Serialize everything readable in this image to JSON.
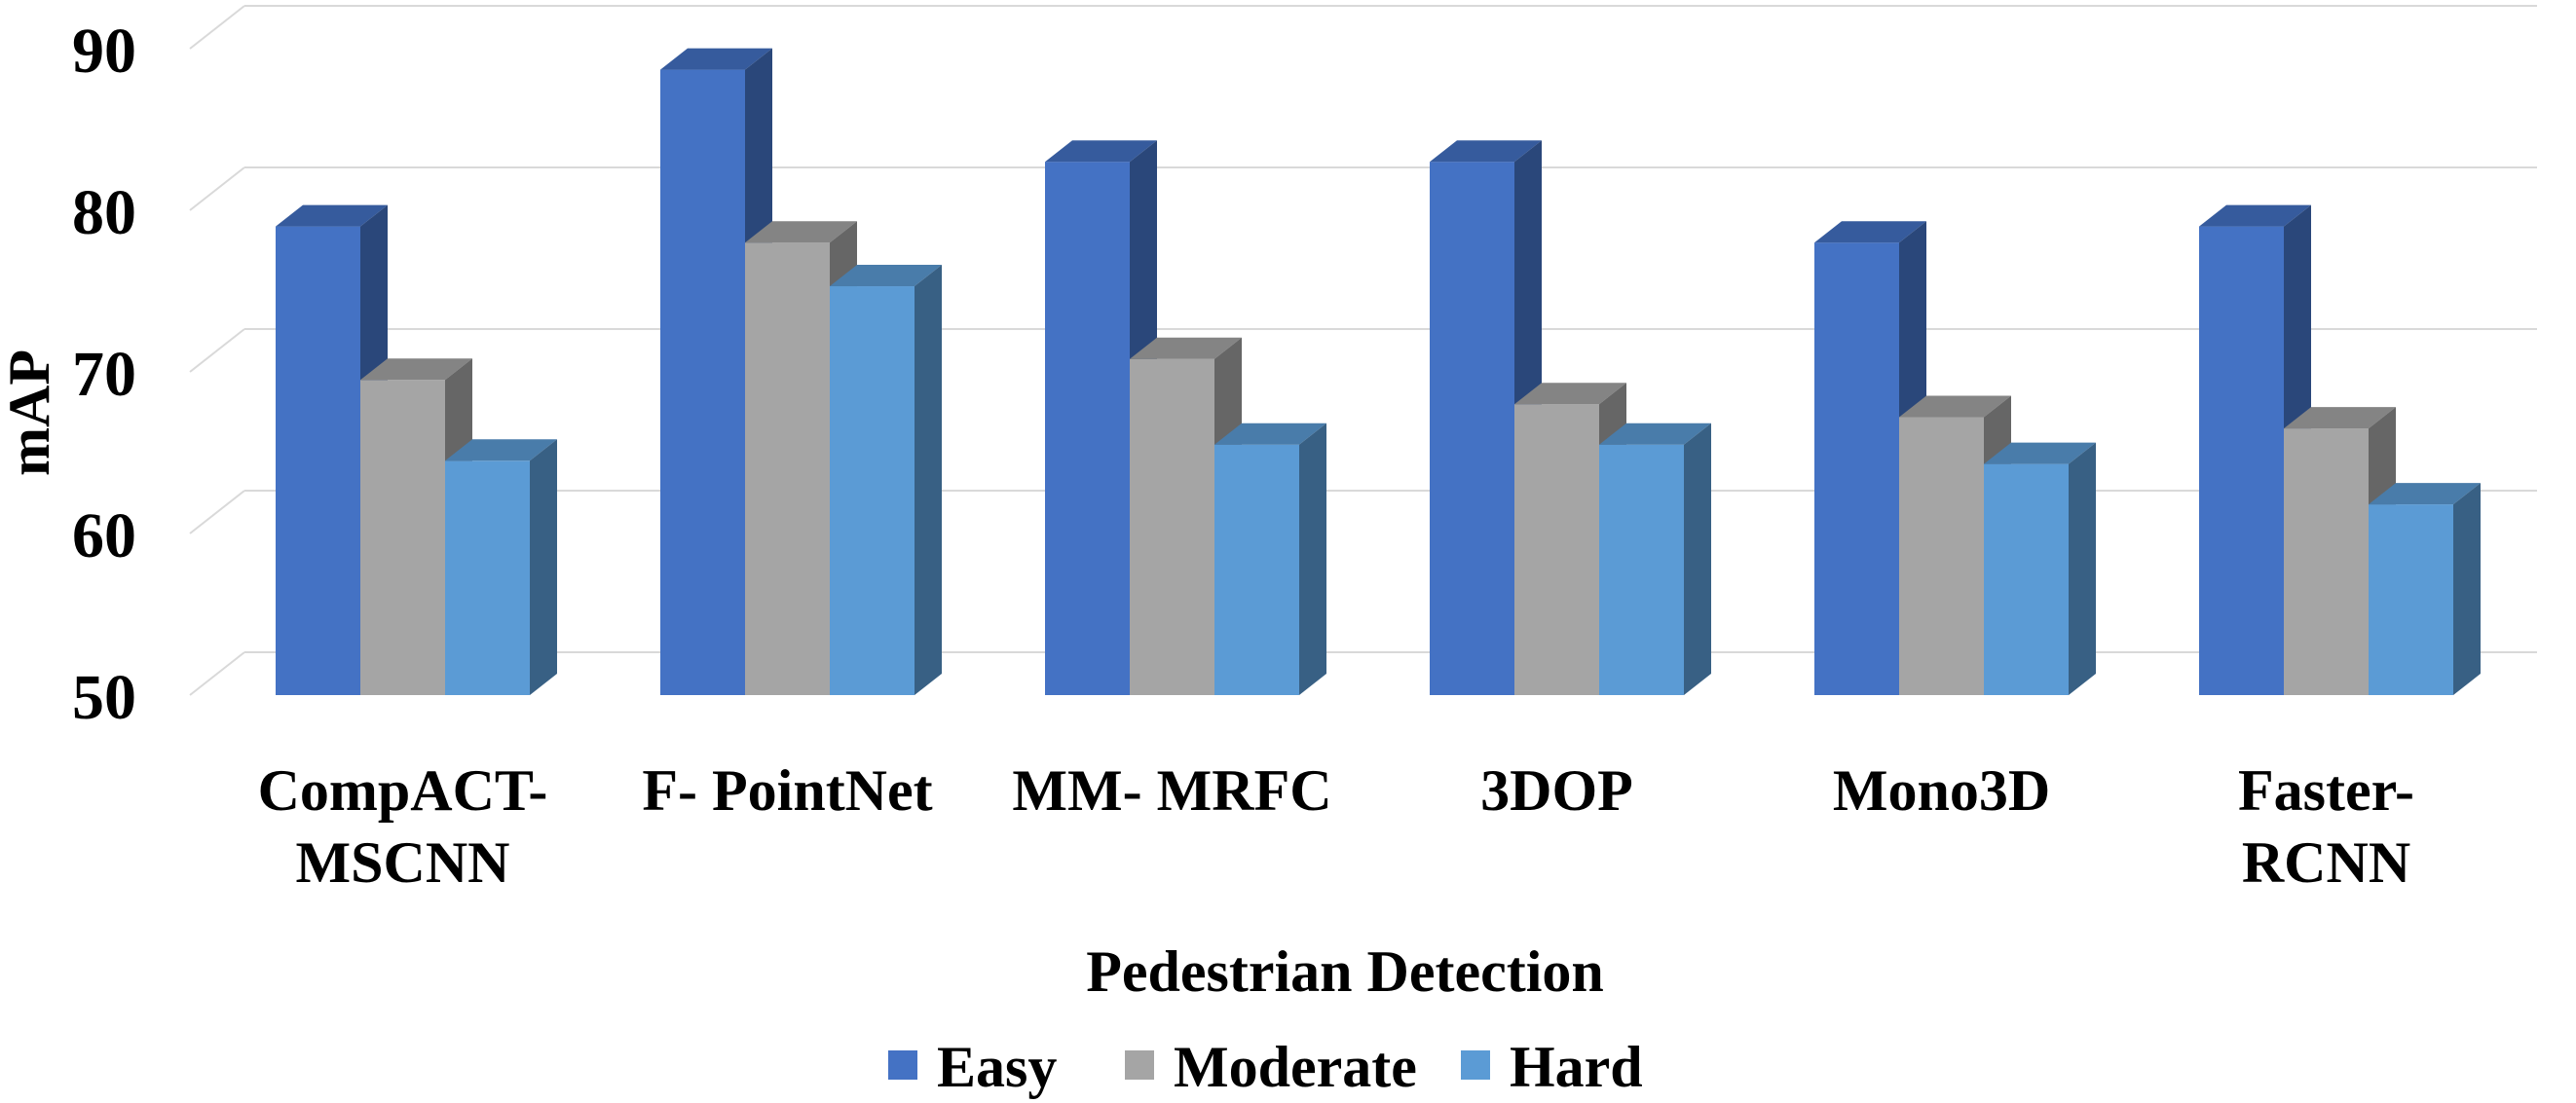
{
  "chart_data": {
    "type": "bar",
    "title": "",
    "xlabel": "Pedestrian Detection",
    "ylabel": "mAP",
    "ylim": [
      50,
      90
    ],
    "yticks": [
      "50",
      "60",
      "70",
      "80",
      "90"
    ],
    "grid": true,
    "legend_position": "bottom",
    "categories": [
      [
        "CompACT-",
        "MSCNN"
      ],
      [
        "F- PointNet"
      ],
      [
        "MM- MRFC"
      ],
      [
        "3DOP"
      ],
      [
        "Mono3D"
      ],
      [
        "Faster-",
        "RCNN"
      ]
    ],
    "series": [
      {
        "name": "Easy",
        "color": "#4472C4",
        "values": [
          79.0,
          88.7,
          83.0,
          83.0,
          78.0,
          79.0
        ]
      },
      {
        "name": "Moderate",
        "color": "#A5A5A5",
        "values": [
          69.5,
          78.0,
          70.8,
          68.0,
          67.2,
          66.5
        ]
      },
      {
        "name": "Hard",
        "color": "#5B9BD5",
        "values": [
          64.5,
          75.3,
          65.5,
          65.5,
          64.3,
          61.8
        ]
      }
    ]
  }
}
